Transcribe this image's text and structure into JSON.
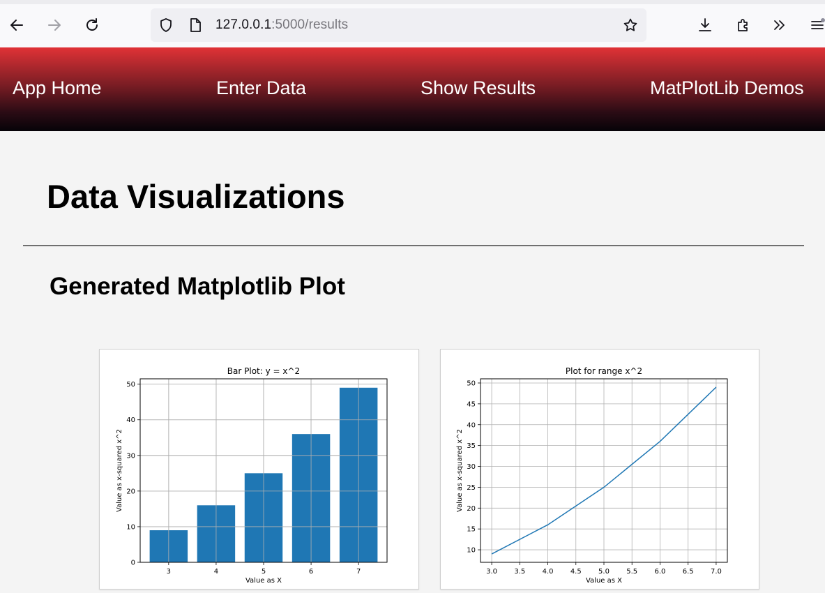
{
  "browser": {
    "url_host": "127.0.0.1",
    "url_path": ":5000/results"
  },
  "nav": {
    "items": [
      {
        "label": "App Home"
      },
      {
        "label": "Enter Data"
      },
      {
        "label": "Show Results"
      },
      {
        "label": "MatPlotLib Demos"
      }
    ]
  },
  "page": {
    "title": "Data Visualizations",
    "section_title": "Generated Matplotlib Plot"
  },
  "colors": {
    "series": "#1f77b4",
    "nav_top": "#e03236",
    "nav_bottom": "#060308"
  },
  "chart_data": [
    {
      "type": "bar",
      "title": "Bar Plot: y = x^2",
      "xlabel": "Value as X",
      "ylabel": "Value as x-squared x^2",
      "categories": [
        "3",
        "4",
        "5",
        "6",
        "7"
      ],
      "values": [
        9,
        16,
        25,
        36,
        49
      ],
      "ylim": [
        0,
        51.5
      ],
      "yticks": [
        0,
        10,
        20,
        30,
        40,
        50
      ],
      "grid": true
    },
    {
      "type": "line",
      "title": "Plot for range x^2",
      "xlabel": "Value as X",
      "ylabel": "Value as x-squared x^2",
      "x": [
        3,
        4,
        5,
        6,
        7
      ],
      "y": [
        9,
        16,
        25,
        36,
        49
      ],
      "xlim": [
        2.8,
        7.2
      ],
      "ylim": [
        7,
        51
      ],
      "xticks": [
        "3.0",
        "3.5",
        "4.0",
        "4.5",
        "5.0",
        "5.5",
        "6.0",
        "6.5",
        "7.0"
      ],
      "yticks": [
        10,
        15,
        20,
        25,
        30,
        35,
        40,
        45,
        50
      ],
      "grid": true
    }
  ]
}
